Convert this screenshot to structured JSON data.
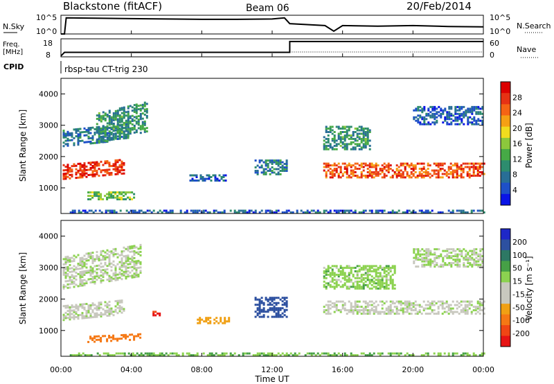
{
  "header": {
    "station": "Blackstone (fitACF)",
    "beam": "Beam 06",
    "date": "20/Feb/2014"
  },
  "top_panels": {
    "nsky_label": "N.Sky",
    "nsky_ticks": [
      "10^5",
      "10^0"
    ],
    "nsearch_label": "N.Search",
    "nsearch_ticks": [
      "10^5",
      "10^0"
    ],
    "freq_label": "Freq.",
    "freq_unit": "[MHz]",
    "freq_ticks": [
      "18",
      "8"
    ],
    "nave_label": "Nave",
    "nave_ticks": [
      "60",
      "0"
    ],
    "cpid_label": "CPID",
    "cpid_text": "rbsp-tau CT-trig 230"
  },
  "axes": {
    "ylabel": "Slant Range [km]",
    "yticks": [
      "1000",
      "2000",
      "3000",
      "4000"
    ],
    "xlabel": "Time UT",
    "xticks": [
      "00:00",
      "04:00",
      "08:00",
      "12:00",
      "16:00",
      "20:00",
      "00:00"
    ]
  },
  "power_scale": {
    "label": "Power [dB]",
    "ticks": [
      "4",
      "8",
      "12",
      "16",
      "20",
      "24",
      "28"
    ],
    "colors": [
      "#0a14e6",
      "#1e50c8",
      "#286e96",
      "#2d8c6e",
      "#46aa46",
      "#8cc83c",
      "#f0dc1e",
      "#f5a014",
      "#f56414",
      "#e63214",
      "#dc0000"
    ]
  },
  "velocity_scale": {
    "label": "Velocity [m s⁻¹]",
    "ticks": [
      "200",
      "100",
      "50",
      "15",
      "-15",
      "-50",
      "-100",
      "-200"
    ],
    "colors": [
      "#1e28c8",
      "#2d50a0",
      "#2d7864",
      "#46a046",
      "#8cd250",
      "#c8c8be",
      "#c8c8be",
      "#f0a014",
      "#f57814",
      "#f04614",
      "#e61414"
    ]
  },
  "chart_data": [
    {
      "type": "line",
      "title": "N.Sky / N.Search",
      "x_range_ut_hours": [
        0,
        24
      ],
      "ylim": [
        "10^0",
        "10^5"
      ],
      "series": [
        {
          "name": "N.Sky",
          "x": [
            0,
            0.2,
            0.3,
            2,
            4,
            6,
            8,
            10,
            12,
            12.7,
            13,
            15,
            15.5,
            16,
            18,
            20,
            22,
            24
          ],
          "y_level_fraction": [
            0.0,
            0.0,
            0.86,
            0.84,
            0.82,
            0.8,
            0.78,
            0.78,
            0.8,
            0.86,
            0.55,
            0.45,
            0.15,
            0.45,
            0.42,
            0.45,
            0.4,
            0.38
          ]
        }
      ]
    },
    {
      "type": "line",
      "title": "Freq. / Nave",
      "x_range_ut_hours": [
        0,
        24
      ],
      "series": [
        {
          "name": "Freq. [MHz]",
          "x": [
            0,
            0.2,
            13.0,
            13.0,
            24
          ],
          "y": [
            8.5,
            10.5,
            10.5,
            16.5,
            16.5
          ]
        }
      ]
    },
    {
      "type": "heatmap",
      "title": "Power [dB]",
      "x": "Time UT (hours 0–24)",
      "y": "Slant Range [km]",
      "ylim": [
        180,
        4500
      ],
      "features": [
        {
          "time": [
            0.1,
            3.6
          ],
          "range": [
            1250,
            2100
          ],
          "power_db": 26,
          "note": "strong band rising"
        },
        {
          "time": [
            0.1,
            3.8
          ],
          "range": [
            2300,
            3300
          ],
          "power_db": 8
        },
        {
          "time": [
            2.0,
            4.9
          ],
          "range": [
            2400,
            4200
          ],
          "power_db": 10
        },
        {
          "time": [
            1.5,
            4.2
          ],
          "range": [
            600,
            1100
          ],
          "power_db": 14
        },
        {
          "time": [
            7.3,
            9.4
          ],
          "range": [
            1200,
            1600
          ],
          "power_db": 6
        },
        {
          "time": [
            11.0,
            12.8
          ],
          "range": [
            1400,
            2300
          ],
          "power_db": 8
        },
        {
          "time": [
            14.9,
            24.0
          ],
          "range": [
            1300,
            2200
          ],
          "power_db": 24,
          "note": "strong band"
        },
        {
          "time": [
            14.9,
            17.5
          ],
          "range": [
            2200,
            3600
          ],
          "power_db": 10
        },
        {
          "time": [
            20.0,
            24.0
          ],
          "range": [
            3000,
            4100
          ],
          "power_db": 6
        },
        {
          "time": [
            0.5,
            24.0
          ],
          "range": [
            180,
            350
          ],
          "power_db": 6,
          "note": "ground scatter near range"
        }
      ]
    },
    {
      "type": "heatmap",
      "title": "Velocity [m s-1]",
      "x": "Time UT (hours 0–24)",
      "y": "Slant Range [km]",
      "ylim": [
        180,
        4500
      ],
      "features": [
        {
          "time": [
            0.1,
            3.6
          ],
          "range": [
            1300,
            2200
          ],
          "velocity": 0,
          "note": "ground scatter grey"
        },
        {
          "time": [
            0.1,
            4.5
          ],
          "range": [
            2300,
            4200
          ],
          "velocity": 5
        },
        {
          "time": [
            1.5,
            4.5
          ],
          "range": [
            600,
            1000
          ],
          "velocity": -90
        },
        {
          "time": [
            5.2,
            5.6
          ],
          "range": [
            1450,
            1750
          ],
          "velocity": -180
        },
        {
          "time": [
            7.6,
            9.6
          ],
          "range": [
            1200,
            1600
          ],
          "velocity": -60
        },
        {
          "time": [
            11.0,
            12.8
          ],
          "range": [
            1400,
            2600
          ],
          "velocity": 150
        },
        {
          "time": [
            14.9,
            24.0
          ],
          "range": [
            1500,
            2300
          ],
          "velocity": 0,
          "note": "ground scatter grey"
        },
        {
          "time": [
            14.9,
            19.0
          ],
          "range": [
            2300,
            3700
          ],
          "velocity": 20
        },
        {
          "time": [
            20.0,
            24.0
          ],
          "range": [
            3000,
            4100
          ],
          "velocity": 10
        },
        {
          "time": [
            0.5,
            24.0
          ],
          "range": [
            180,
            350
          ],
          "velocity": 30
        }
      ]
    }
  ]
}
